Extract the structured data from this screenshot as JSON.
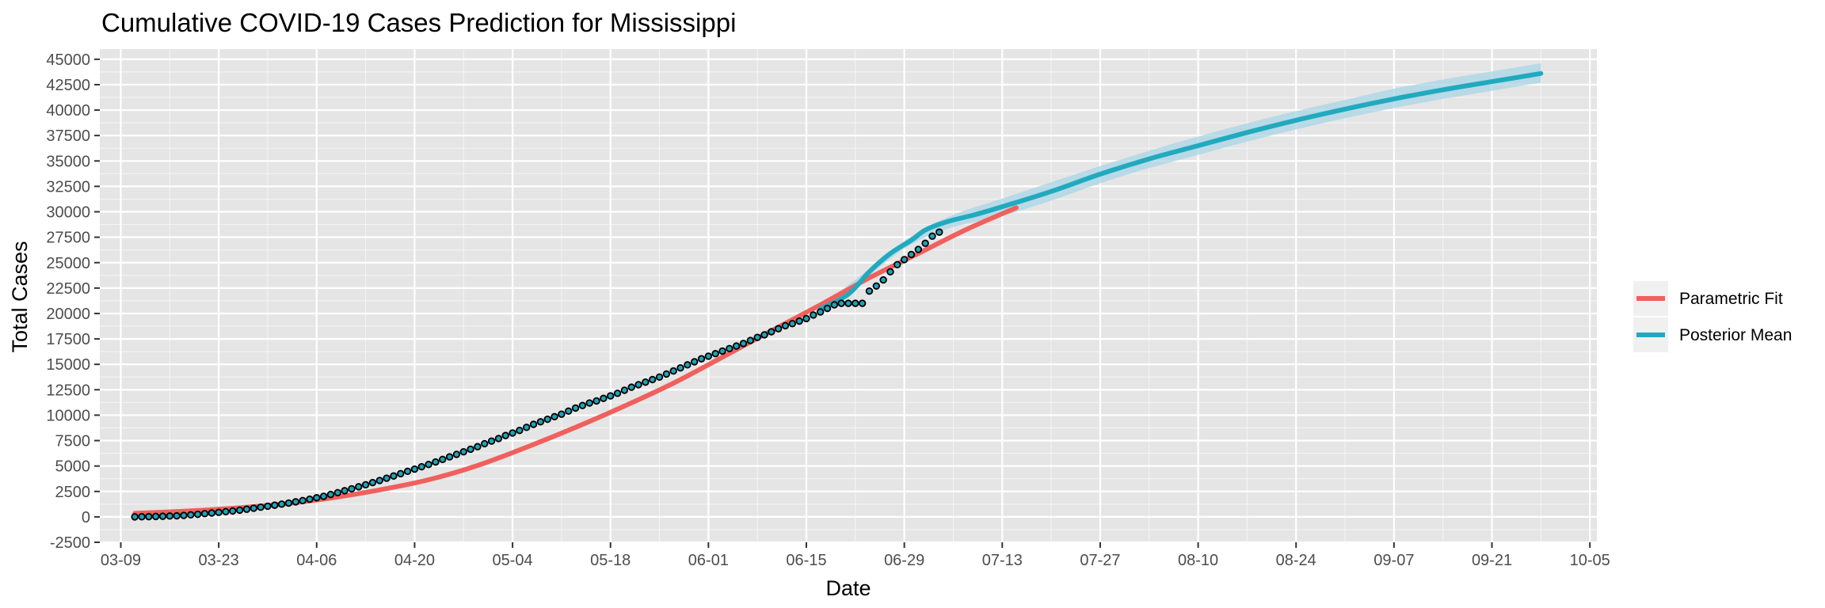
{
  "chart_data": {
    "type": "line",
    "title": "Cumulative COVID-19 Cases Prediction for Mississippi",
    "xlabel": "Date",
    "ylabel": "Total Cases",
    "x_range": [
      "2020-03-06",
      "2020-10-06"
    ],
    "xlim_labels": {
      "ticks": [
        "03-09",
        "03-23",
        "04-06",
        "04-20",
        "05-04",
        "05-18",
        "06-01",
        "06-15",
        "06-29",
        "07-13",
        "07-27",
        "08-10",
        "08-24",
        "09-07",
        "09-21",
        "10-05"
      ],
      "tick_dates": [
        "2020-03-09",
        "2020-03-23",
        "2020-04-06",
        "2020-04-20",
        "2020-05-04",
        "2020-05-18",
        "2020-06-01",
        "2020-06-15",
        "2020-06-29",
        "2020-07-13",
        "2020-07-27",
        "2020-08-10",
        "2020-08-24",
        "2020-09-07",
        "2020-09-21",
        "2020-10-05"
      ]
    },
    "ylim": [
      -2500,
      46000
    ],
    "y_ticks": [
      -2500,
      0,
      2500,
      5000,
      7500,
      10000,
      12500,
      15000,
      17500,
      20000,
      22500,
      25000,
      27500,
      30000,
      32500,
      35000,
      37500,
      40000,
      42500,
      45000
    ],
    "grid": true,
    "legend": "right",
    "colors": {
      "panel_bg": "#e5e5e5",
      "grid_major": "#ffffff",
      "parametric": "#f0605d",
      "posterior": "#21aabe",
      "band": "#a8d4e6",
      "observed_fill": "#1fa3b8",
      "observed_edge": "#000000",
      "legend_bg": "#f0f0f0"
    },
    "series": [
      {
        "name": "Parametric Fit",
        "points": [
          [
            "2020-03-11",
            350
          ],
          [
            "2020-03-18",
            550
          ],
          [
            "2020-03-25",
            850
          ],
          [
            "2020-04-01",
            1250
          ],
          [
            "2020-04-08",
            1850
          ],
          [
            "2020-04-15",
            2650
          ],
          [
            "2020-04-22",
            3650
          ],
          [
            "2020-04-29",
            5050
          ],
          [
            "2020-05-06",
            6850
          ],
          [
            "2020-05-13",
            8800
          ],
          [
            "2020-05-20",
            10900
          ],
          [
            "2020-05-27",
            13150
          ],
          [
            "2020-06-03",
            15700
          ],
          [
            "2020-06-10",
            18300
          ],
          [
            "2020-06-17",
            20850
          ],
          [
            "2020-06-24",
            23500
          ],
          [
            "2020-07-01",
            25900
          ],
          [
            "2020-07-08",
            28300
          ],
          [
            "2020-07-15",
            30400
          ]
        ]
      },
      {
        "name": "Posterior Mean",
        "points": [
          [
            "2020-06-17",
            20450
          ],
          [
            "2020-06-21",
            21900
          ],
          [
            "2020-06-24",
            24100
          ],
          [
            "2020-06-27",
            25900
          ],
          [
            "2020-06-30",
            27200
          ],
          [
            "2020-07-02",
            28200
          ],
          [
            "2020-07-05",
            29000
          ],
          [
            "2020-07-09",
            29700
          ],
          [
            "2020-07-13",
            30500
          ],
          [
            "2020-07-20",
            32000
          ],
          [
            "2020-07-27",
            33700
          ],
          [
            "2020-08-03",
            35200
          ],
          [
            "2020-08-10",
            36500
          ],
          [
            "2020-08-17",
            37800
          ],
          [
            "2020-08-24",
            39000
          ],
          [
            "2020-08-31",
            40100
          ],
          [
            "2020-09-07",
            41100
          ],
          [
            "2020-09-14",
            42000
          ],
          [
            "2020-09-21",
            42800
          ],
          [
            "2020-09-28",
            43600
          ]
        ],
        "band_upper": [
          [
            "2020-06-17",
            20650
          ],
          [
            "2020-06-24",
            24400
          ],
          [
            "2020-06-30",
            27600
          ],
          [
            "2020-07-06",
            29700
          ],
          [
            "2020-07-13",
            31300
          ],
          [
            "2020-07-20",
            32900
          ],
          [
            "2020-07-27",
            34500
          ],
          [
            "2020-08-03",
            36000
          ],
          [
            "2020-08-10",
            37400
          ],
          [
            "2020-08-17",
            38700
          ],
          [
            "2020-08-24",
            39900
          ],
          [
            "2020-08-31",
            41000
          ],
          [
            "2020-09-07",
            42100
          ],
          [
            "2020-09-14",
            43000
          ],
          [
            "2020-09-21",
            43800
          ],
          [
            "2020-09-28",
            44600
          ]
        ],
        "band_lower": [
          [
            "2020-06-17",
            20250
          ],
          [
            "2020-06-24",
            23800
          ],
          [
            "2020-06-30",
            26800
          ],
          [
            "2020-07-06",
            28500
          ],
          [
            "2020-07-13",
            29600
          ],
          [
            "2020-07-20",
            31100
          ],
          [
            "2020-07-27",
            32800
          ],
          [
            "2020-08-03",
            34300
          ],
          [
            "2020-08-10",
            35600
          ],
          [
            "2020-08-17",
            36900
          ],
          [
            "2020-08-24",
            38100
          ],
          [
            "2020-08-31",
            39200
          ],
          [
            "2020-09-07",
            40200
          ],
          [
            "2020-09-14",
            41100
          ],
          [
            "2020-09-21",
            41900
          ],
          [
            "2020-09-28",
            42700
          ]
        ]
      }
    ],
    "observed": {
      "start_date": "2020-03-11",
      "values": [
        0,
        10,
        20,
        40,
        60,
        80,
        100,
        140,
        200,
        250,
        320,
        380,
        440,
        510,
        580,
        660,
        750,
        850,
        950,
        1050,
        1150,
        1250,
        1360,
        1480,
        1600,
        1740,
        1880,
        2020,
        2200,
        2380,
        2570,
        2760,
        2960,
        3160,
        3370,
        3580,
        3800,
        4020,
        4250,
        4480,
        4700,
        4930,
        5150,
        5400,
        5650,
        5900,
        6150,
        6400,
        6650,
        6900,
        7200,
        7450,
        7700,
        8000,
        8250,
        8500,
        8800,
        9100,
        9350,
        9600,
        9850,
        10100,
        10400,
        10700,
        10950,
        11200,
        11400,
        11650,
        11900,
        12150,
        12450,
        12750,
        13000,
        13250,
        13500,
        13750,
        14050,
        14350,
        14650,
        14950,
        15250,
        15550,
        15800,
        16050,
        16300,
        16550,
        16800,
        17050,
        17350,
        17650,
        17900,
        18200,
        18500,
        18800,
        19000,
        19250,
        19500,
        19850,
        20150,
        20500,
        20850,
        21000,
        21000,
        21000,
        21000,
        22200,
        22700,
        23300,
        24100,
        24800,
        25300,
        25800,
        26300,
        26900,
        27600,
        28000
      ]
    }
  },
  "legend_items": [
    {
      "label": "Parametric Fit",
      "color": "#f0605d"
    },
    {
      "label": "Posterior Mean",
      "color": "#21aabe"
    }
  ]
}
